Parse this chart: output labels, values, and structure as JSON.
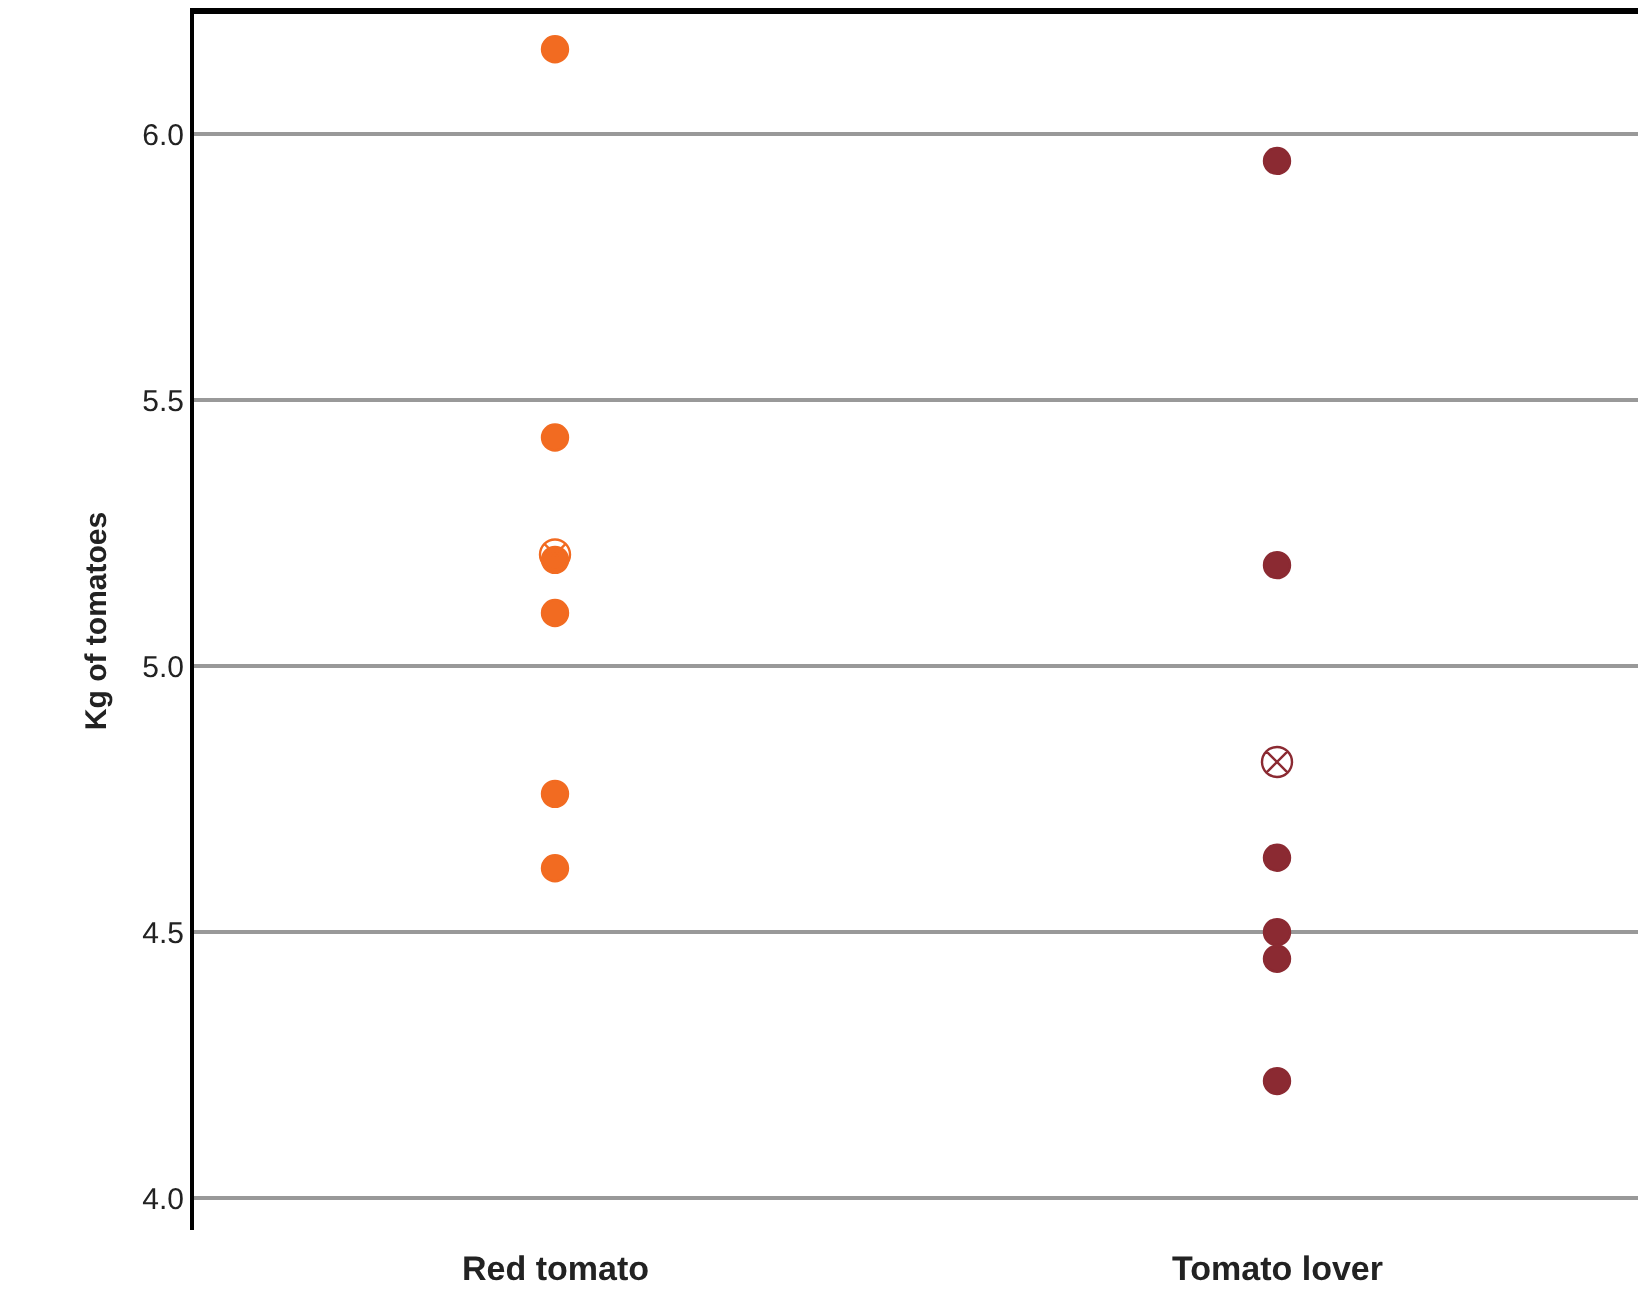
{
  "chart_data": {
    "type": "scatter",
    "ylabel": "Kg of tomatoes",
    "categories": [
      "Red tomato",
      "Tomato lover"
    ],
    "series": [
      {
        "color": "#f26b21",
        "marker": "circle",
        "x": [
          "Red tomato",
          "Red tomato",
          "Red tomato",
          "Red tomato",
          "Red tomato",
          "Red tomato"
        ],
        "values": [
          6.16,
          5.43,
          5.2,
          5.1,
          4.76,
          4.62
        ]
      },
      {
        "color": "#f26b21",
        "marker": "cross",
        "x": [
          "Red tomato"
        ],
        "values": [
          5.21
        ]
      },
      {
        "color": "#8b2a32",
        "marker": "circle",
        "x": [
          "Tomato lover",
          "Tomato lover",
          "Tomato lover",
          "Tomato lover",
          "Tomato lover",
          "Tomato lover"
        ],
        "values": [
          5.95,
          5.19,
          4.64,
          4.5,
          4.45,
          4.22
        ]
      },
      {
        "color": "#8b2a32",
        "marker": "cross",
        "x": [
          "Tomato lover"
        ],
        "values": [
          4.82
        ]
      }
    ],
    "ylim": [
      3.94,
      6.23
    ],
    "yticks": [
      {
        "value": 4,
        "label": "4.0"
      },
      {
        "value": 4.5,
        "label": "4.5"
      },
      {
        "value": 5,
        "label": "5.0"
      },
      {
        "value": 5.5,
        "label": "5.5"
      },
      {
        "value": 6,
        "label": "6.0"
      }
    ],
    "grid": "y"
  }
}
